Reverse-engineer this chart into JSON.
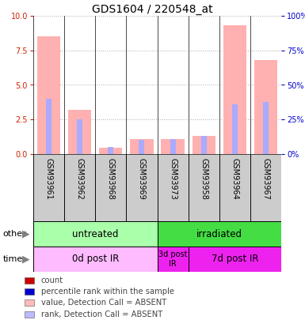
{
  "title": "GDS1604 / 220548_at",
  "samples": [
    "GSM93961",
    "GSM93962",
    "GSM93968",
    "GSM93969",
    "GSM93973",
    "GSM93958",
    "GSM93964",
    "GSM93967"
  ],
  "pink_bars": [
    8.5,
    3.2,
    0.45,
    1.1,
    1.1,
    1.3,
    9.3,
    6.8
  ],
  "blue_bars": [
    4.0,
    2.5,
    0.5,
    1.0,
    1.1,
    1.3,
    3.6,
    3.8
  ],
  "ylim": [
    0,
    10
  ],
  "y2lim": [
    0,
    100
  ],
  "yticks": [
    0,
    2.5,
    5,
    7.5,
    10
  ],
  "y2ticks": [
    0,
    25,
    50,
    75,
    100
  ],
  "groups": [
    {
      "label": "untreated",
      "start": 0,
      "end": 4,
      "color": "#aaffaa"
    },
    {
      "label": "irradiated",
      "start": 4,
      "end": 8,
      "color": "#44dd44"
    }
  ],
  "time_groups": [
    {
      "label": "0d post IR",
      "start": 0,
      "end": 4,
      "color": "#ffbbff"
    },
    {
      "label": "3d post\nIR",
      "start": 4,
      "end": 5,
      "color": "#ee22ee"
    },
    {
      "label": "7d post IR",
      "start": 5,
      "end": 8,
      "color": "#ee22ee"
    }
  ],
  "left_label_other": "other",
  "left_label_time": "time",
  "legend_items": [
    {
      "label": "count",
      "color": "#cc0000"
    },
    {
      "label": "percentile rank within the sample",
      "color": "#0000cc"
    },
    {
      "label": "value, Detection Call = ABSENT",
      "color": "#ffbbbb"
    },
    {
      "label": "rank, Detection Call = ABSENT",
      "color": "#bbbbff"
    }
  ],
  "pink_color": "#ffb0b0",
  "blue_color": "#aaaaff",
  "left_axis_color": "#cc2200",
  "right_axis_color": "#0000cc",
  "grid_color": "#aaaaaa",
  "sample_bg_color": "#cccccc",
  "title_fontsize": 10,
  "tick_fontsize": 7,
  "label_fontsize": 8
}
